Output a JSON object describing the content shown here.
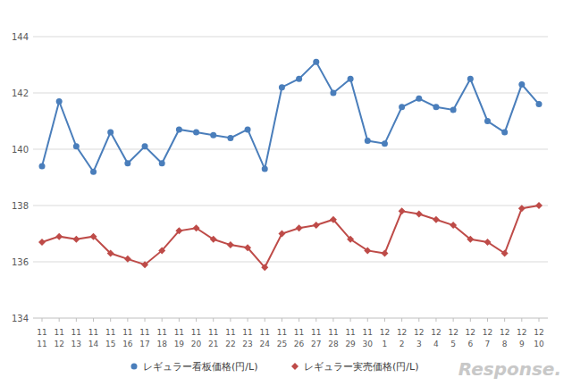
{
  "chart_data": {
    "type": "line",
    "categories": [
      "11\n11",
      "11\n12",
      "11\n13",
      "11\n14",
      "11\n15",
      "11\n16",
      "11\n17",
      "11\n18",
      "11\n19",
      "11\n20",
      "11\n21",
      "11\n22",
      "11\n23",
      "11\n24",
      "11\n25",
      "11\n26",
      "11\n27",
      "11\n28",
      "11\n29",
      "11\n30",
      "12\n1",
      "12\n2",
      "12\n3",
      "12\n4",
      "12\n5",
      "12\n6",
      "12\n7",
      "12\n8",
      "12\n9",
      "12\n10"
    ],
    "series": [
      {
        "name": "レギュラー看板価格(円/L)",
        "color": "#4a7ebb",
        "marker": "circle",
        "values": [
          139.4,
          141.7,
          140.1,
          139.2,
          140.6,
          139.5,
          140.1,
          139.5,
          140.7,
          140.6,
          140.5,
          140.4,
          140.7,
          139.3,
          142.2,
          142.5,
          143.1,
          142.0,
          142.5,
          140.3,
          140.2,
          141.5,
          141.8,
          141.5,
          141.4,
          142.5,
          141.0,
          140.6,
          142.3,
          141.6
        ]
      },
      {
        "name": "レギュラー実売価格(円/L)",
        "color": "#be4b48",
        "marker": "diamond",
        "values": [
          136.7,
          136.9,
          136.8,
          136.9,
          136.3,
          136.1,
          135.9,
          136.4,
          137.1,
          137.2,
          136.8,
          136.6,
          136.5,
          135.8,
          137.0,
          137.2,
          137.3,
          137.5,
          136.8,
          136.4,
          136.3,
          137.8,
          137.7,
          137.5,
          137.3,
          136.8,
          136.7,
          136.3,
          137.9,
          138.0
        ]
      }
    ],
    "ylim": [
      134,
      144
    ],
    "yticks": [
      134,
      136,
      138,
      140,
      142,
      144
    ],
    "grid": true,
    "legend": "bottom",
    "annotations": [
      "Response."
    ]
  }
}
